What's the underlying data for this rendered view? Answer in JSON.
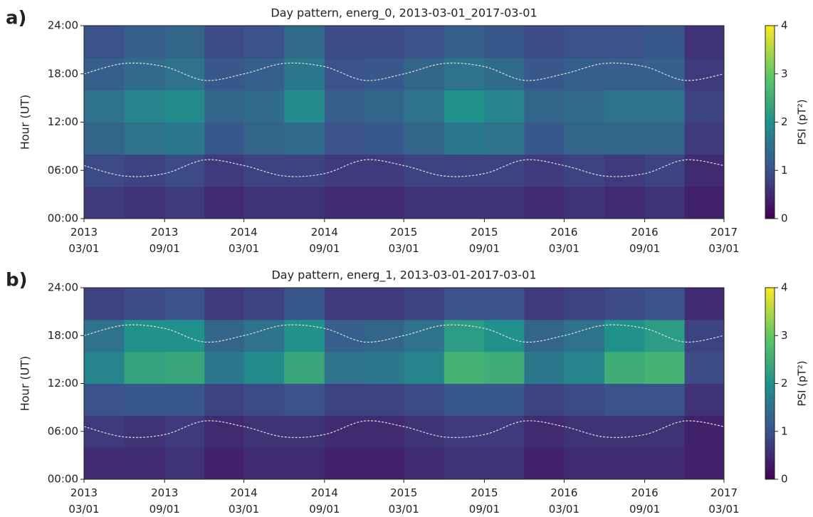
{
  "chart_data": [
    {
      "type": "heatmap",
      "panel_label": "a)",
      "title": "Day pattern, energ_0, 2013-03-01_2017-03-01",
      "ylabel": "Hour (UT)",
      "colorbar_label": "PSI (pT²)",
      "colormap": "viridis",
      "clim": [
        0,
        4
      ],
      "cticks": [
        0,
        1,
        2,
        3,
        4
      ],
      "xlim": [
        "2013-03-01",
        "2017-03-01"
      ],
      "xticks": [
        {
          "value": "2013-03-01",
          "label": "2013\n03/01"
        },
        {
          "value": "2013-09-01",
          "label": "2013\n09/01"
        },
        {
          "value": "2014-03-01",
          "label": "2014\n03/01"
        },
        {
          "value": "2014-09-01",
          "label": "2014\n09/01"
        },
        {
          "value": "2015-03-01",
          "label": "2015\n03/01"
        },
        {
          "value": "2015-09-01",
          "label": "2015\n09/01"
        },
        {
          "value": "2016-03-01",
          "label": "2016\n03/01"
        },
        {
          "value": "2016-09-01",
          "label": "2016\n09/01"
        },
        {
          "value": "2017-03-01",
          "label": "2017\n03/01"
        }
      ],
      "ylim": [
        0,
        24
      ],
      "yticks": [
        {
          "value": 0,
          "label": "00:00"
        },
        {
          "value": 6,
          "label": "06:00"
        },
        {
          "value": 12,
          "label": "12:00"
        },
        {
          "value": 18,
          "label": "18:00"
        },
        {
          "value": 24,
          "label": "24:00"
        }
      ],
      "x_bins": [
        "2013-03-01",
        "2013-06-01",
        "2013-09-01",
        "2013-12-01",
        "2014-03-01",
        "2014-06-01",
        "2014-09-01",
        "2014-12-01",
        "2015-03-01",
        "2015-06-01",
        "2015-09-01",
        "2015-12-01",
        "2016-03-01",
        "2016-06-01",
        "2016-09-01",
        "2016-12-01",
        "2017-03-01"
      ],
      "y_bins": [
        0,
        4,
        8,
        12,
        16,
        20,
        24
      ],
      "values": [
        [
          0.7,
          0.6,
          0.7,
          0.5,
          0.6,
          0.6,
          0.5,
          0.5,
          0.6,
          0.6,
          0.6,
          0.5,
          0.6,
          0.5,
          0.6,
          0.4
        ],
        [
          0.9,
          0.8,
          0.9,
          0.7,
          0.8,
          0.8,
          0.7,
          0.7,
          0.8,
          0.8,
          0.8,
          0.7,
          0.8,
          0.7,
          0.8,
          0.5
        ],
        [
          1.3,
          1.5,
          1.6,
          1.1,
          1.3,
          1.4,
          1.0,
          1.1,
          1.3,
          1.6,
          1.5,
          1.1,
          1.3,
          1.3,
          1.3,
          0.7
        ],
        [
          1.5,
          1.8,
          1.9,
          1.3,
          1.4,
          1.9,
          1.2,
          1.3,
          1.5,
          2.0,
          1.8,
          1.3,
          1.4,
          1.5,
          1.5,
          0.8
        ],
        [
          1.2,
          1.4,
          1.5,
          1.1,
          1.2,
          1.6,
          1.0,
          1.1,
          1.3,
          1.5,
          1.4,
          1.1,
          1.2,
          1.2,
          1.2,
          0.7
        ],
        [
          1.0,
          1.2,
          1.3,
          0.9,
          1.0,
          1.4,
          0.9,
          0.9,
          1.0,
          1.2,
          1.1,
          0.9,
          1.0,
          1.0,
          1.1,
          0.6
        ]
      ],
      "curves": [
        {
          "color": "#dddddd",
          "values": [
            18.0,
            19.3,
            18.9,
            17.2,
            18.0,
            19.3,
            18.9,
            17.2,
            18.0,
            19.3,
            18.9,
            17.2,
            18.0,
            19.3,
            18.9,
            17.2,
            18.0
          ]
        },
        {
          "color": "#dddddd",
          "values": [
            6.6,
            5.3,
            5.6,
            7.3,
            6.6,
            5.3,
            5.6,
            7.3,
            6.6,
            5.3,
            5.6,
            7.3,
            6.6,
            5.3,
            5.6,
            7.3,
            6.6
          ]
        }
      ]
    },
    {
      "type": "heatmap",
      "panel_label": "b)",
      "title": "Day pattern, energ_1, 2013-03-01-2017-03-01",
      "ylabel": "Hour (UT)",
      "colorbar_label": "PSI (pT²)",
      "colormap": "viridis",
      "clim": [
        0,
        4
      ],
      "cticks": [
        0,
        1,
        2,
        3,
        4
      ],
      "xlim": [
        "2013-03-01",
        "2017-03-01"
      ],
      "xticks": [
        {
          "value": "2013-03-01",
          "label": "2013\n03/01"
        },
        {
          "value": "2013-09-01",
          "label": "2013\n09/01"
        },
        {
          "value": "2014-03-01",
          "label": "2014\n03/01"
        },
        {
          "value": "2014-09-01",
          "label": "2014\n09/01"
        },
        {
          "value": "2015-03-01",
          "label": "2015\n03/01"
        },
        {
          "value": "2015-09-01",
          "label": "2015\n09/01"
        },
        {
          "value": "2016-03-01",
          "label": "2016\n03/01"
        },
        {
          "value": "2016-09-01",
          "label": "2016\n09/01"
        },
        {
          "value": "2017-03-01",
          "label": "2017\n03/01"
        }
      ],
      "ylim": [
        0,
        24
      ],
      "yticks": [
        {
          "value": 0,
          "label": "00:00"
        },
        {
          "value": 6,
          "label": "06:00"
        },
        {
          "value": 12,
          "label": "12:00"
        },
        {
          "value": 18,
          "label": "18:00"
        },
        {
          "value": 24,
          "label": "24:00"
        }
      ],
      "x_bins": [
        "2013-03-01",
        "2013-06-01",
        "2013-09-01",
        "2013-12-01",
        "2014-03-01",
        "2014-06-01",
        "2014-09-01",
        "2014-12-01",
        "2015-03-01",
        "2015-06-01",
        "2015-09-01",
        "2015-12-01",
        "2016-03-01",
        "2016-06-01",
        "2016-09-01",
        "2016-12-01",
        "2017-03-01"
      ],
      "y_bins": [
        0,
        4,
        8,
        12,
        16,
        20,
        24
      ],
      "values": [
        [
          0.5,
          0.5,
          0.6,
          0.4,
          0.5,
          0.5,
          0.4,
          0.4,
          0.5,
          0.6,
          0.6,
          0.4,
          0.5,
          0.5,
          0.5,
          0.4
        ],
        [
          0.7,
          0.6,
          0.7,
          0.5,
          0.6,
          0.6,
          0.5,
          0.5,
          0.6,
          0.7,
          0.7,
          0.5,
          0.6,
          0.6,
          0.6,
          0.4
        ],
        [
          1.0,
          1.1,
          1.1,
          0.8,
          0.9,
          1.0,
          0.8,
          0.8,
          0.9,
          1.1,
          1.1,
          0.8,
          0.9,
          1.0,
          1.0,
          0.6
        ],
        [
          1.8,
          2.3,
          2.4,
          1.6,
          1.9,
          2.4,
          1.5,
          1.6,
          1.8,
          2.6,
          2.5,
          1.6,
          1.8,
          2.5,
          2.6,
          0.9
        ],
        [
          1.5,
          2.0,
          2.0,
          1.3,
          1.5,
          2.0,
          1.2,
          1.3,
          1.5,
          2.2,
          2.0,
          1.3,
          1.5,
          2.0,
          2.2,
          0.8
        ],
        [
          0.8,
          0.9,
          1.0,
          0.7,
          0.8,
          1.1,
          0.7,
          0.7,
          0.8,
          1.0,
          1.0,
          0.7,
          0.8,
          0.9,
          1.0,
          0.5
        ]
      ],
      "curves": [
        {
          "color": "#dddddd",
          "values": [
            18.0,
            19.3,
            18.9,
            17.2,
            18.0,
            19.3,
            18.9,
            17.2,
            18.0,
            19.3,
            18.9,
            17.2,
            18.0,
            19.3,
            18.9,
            17.2,
            18.0
          ]
        },
        {
          "color": "#dddddd",
          "values": [
            6.6,
            5.3,
            5.6,
            7.3,
            6.6,
            5.3,
            5.6,
            7.3,
            6.6,
            5.3,
            5.6,
            7.3,
            6.6,
            5.3,
            5.6,
            7.3,
            6.6
          ]
        }
      ]
    }
  ]
}
